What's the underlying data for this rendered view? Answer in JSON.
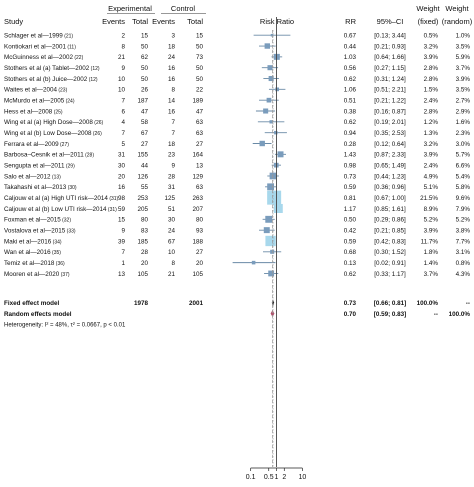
{
  "chart_data": {
    "type": "forest",
    "headers": {
      "study": "Study",
      "experimental": "Experimental",
      "control": "Control",
      "events": "Events",
      "total": "Total",
      "effect": "Risk Ratio",
      "rr": "RR",
      "ci": "95%–CI",
      "weight": "Weight",
      "fixed": "(fixed)",
      "random": "(random)"
    },
    "axis": {
      "scale": "log",
      "xlim": [
        0.05,
        12
      ],
      "ticks": [
        "0.1",
        "0.5",
        "1",
        "2",
        "10"
      ],
      "tick_values": [
        0.1,
        0.5,
        1,
        2,
        10
      ]
    },
    "studies": [
      {
        "study": "Schlager et al—1999",
        "ref": "(21)",
        "e_events": "2",
        "e_total": "15",
        "c_events": "3",
        "c_total": "15",
        "rr": "0.67",
        "ci": "[0.13; 3.44]",
        "w_fixed": "0.5%",
        "w_random": "1.0%",
        "rr_val": 0.67,
        "lo": 0.13,
        "hi": 3.44,
        "wf": 0.5
      },
      {
        "study": "Kontiokari et al—2001",
        "ref": "(11)",
        "e_events": "8",
        "e_total": "50",
        "c_events": "18",
        "c_total": "50",
        "rr": "0.44",
        "ci": "[0.21; 0.93]",
        "w_fixed": "3.2%",
        "w_random": "3.5%",
        "rr_val": 0.44,
        "lo": 0.21,
        "hi": 0.93,
        "wf": 3.2
      },
      {
        "study": "McGuinness et al—2002",
        "ref": "(22)",
        "e_events": "21",
        "e_total": "62",
        "c_events": "24",
        "c_total": "73",
        "rr": "1.03",
        "ci": "[0.64; 1.66]",
        "w_fixed": "3.9%",
        "w_random": "5.9%",
        "rr_val": 1.03,
        "lo": 0.64,
        "hi": 1.66,
        "wf": 3.9
      },
      {
        "study": "Stothers et al (a) Tablet—2002",
        "ref": "(12)",
        "e_events": "9",
        "e_total": "50",
        "c_events": "16",
        "c_total": "50",
        "rr": "0.56",
        "ci": "[0.27; 1.15]",
        "w_fixed": "2.8%",
        "w_random": "3.7%",
        "rr_val": 0.56,
        "lo": 0.27,
        "hi": 1.15,
        "wf": 2.8
      },
      {
        "study": "Stothers et al (b) Juice—2002",
        "ref": "(12)",
        "e_events": "10",
        "e_total": "50",
        "c_events": "16",
        "c_total": "50",
        "rr": "0.62",
        "ci": "[0.31; 1.24]",
        "w_fixed": "2.8%",
        "w_random": "3.9%",
        "rr_val": 0.62,
        "lo": 0.31,
        "hi": 1.24,
        "wf": 2.8
      },
      {
        "study": "Waites et al—2004",
        "ref": "(23)",
        "e_events": "10",
        "e_total": "26",
        "c_events": "8",
        "c_total": "22",
        "rr": "1.06",
        "ci": "[0.51; 2.21]",
        "w_fixed": "1.5%",
        "w_random": "3.5%",
        "rr_val": 1.06,
        "lo": 0.51,
        "hi": 2.21,
        "wf": 1.5
      },
      {
        "study": "McMurdo et al—2005",
        "ref": "(24)",
        "e_events": "7",
        "e_total": "187",
        "c_events": "14",
        "c_total": "189",
        "rr": "0.51",
        "ci": "[0.21; 1.22]",
        "w_fixed": "2.4%",
        "w_random": "2.7%",
        "rr_val": 0.51,
        "lo": 0.21,
        "hi": 1.22,
        "wf": 2.4
      },
      {
        "study": "Hess et al—2008",
        "ref": "(25)",
        "e_events": "6",
        "e_total": "47",
        "c_events": "16",
        "c_total": "47",
        "rr": "0.38",
        "ci": "[0.16; 0.87]",
        "w_fixed": "2.8%",
        "w_random": "2.9%",
        "rr_val": 0.38,
        "lo": 0.16,
        "hi": 0.87,
        "wf": 2.8
      },
      {
        "study": "Wing et al (a) High Dose—2008",
        "ref": "(26)",
        "e_events": "4",
        "e_total": "58",
        "c_events": "7",
        "c_total": "63",
        "rr": "0.62",
        "ci": "[0.19; 2.01]",
        "w_fixed": "1.2%",
        "w_random": "1.6%",
        "rr_val": 0.62,
        "lo": 0.19,
        "hi": 2.01,
        "wf": 1.2
      },
      {
        "study": "Wing et al (b) Low Dose—2008",
        "ref": "(26)",
        "e_events": "7",
        "e_total": "67",
        "c_events": "7",
        "c_total": "63",
        "rr": "0.94",
        "ci": "[0.35; 2.53]",
        "w_fixed": "1.3%",
        "w_random": "2.3%",
        "rr_val": 0.94,
        "lo": 0.35,
        "hi": 2.53,
        "wf": 1.3
      },
      {
        "study": "Ferrara et al—2009",
        "ref": "(27)",
        "e_events": "5",
        "e_total": "27",
        "c_events": "18",
        "c_total": "27",
        "rr": "0.28",
        "ci": "[0.12; 0.64]",
        "w_fixed": "3.2%",
        "w_random": "3.0%",
        "rr_val": 0.28,
        "lo": 0.12,
        "hi": 0.64,
        "wf": 3.2
      },
      {
        "study": "Barbosa–Cesnik et al—2011",
        "ref": "(28)",
        "e_events": "31",
        "e_total": "155",
        "c_events": "23",
        "c_total": "164",
        "rr": "1.43",
        "ci": "[0.87; 2.33]",
        "w_fixed": "3.9%",
        "w_random": "5.7%",
        "rr_val": 1.43,
        "lo": 0.87,
        "hi": 2.33,
        "wf": 3.9
      },
      {
        "study": "Sengupta et al—2011",
        "ref": "(29)",
        "e_events": "30",
        "e_total": "44",
        "c_events": "9",
        "c_total": "13",
        "rr": "0.98",
        "ci": "[0.65; 1.49]",
        "w_fixed": "2.4%",
        "w_random": "6.6%",
        "rr_val": 0.98,
        "lo": 0.65,
        "hi": 1.49,
        "wf": 2.4
      },
      {
        "study": "Salo et al—2012",
        "ref": "(13)",
        "e_events": "20",
        "e_total": "126",
        "c_events": "28",
        "c_total": "129",
        "rr": "0.73",
        "ci": "[0.44; 1.23]",
        "w_fixed": "4.9%",
        "w_random": "5.4%",
        "rr_val": 0.73,
        "lo": 0.44,
        "hi": 1.23,
        "wf": 4.9
      },
      {
        "study": "Takahashi et al—2013",
        "ref": "(30)",
        "e_events": "16",
        "e_total": "55",
        "c_events": "31",
        "c_total": "63",
        "rr": "0.59",
        "ci": "[0.36; 0.96]",
        "w_fixed": "5.1%",
        "w_random": "5.8%",
        "rr_val": 0.59,
        "lo": 0.36,
        "hi": 0.96,
        "wf": 5.1
      },
      {
        "study": "Caljouw et al (a) High UTI risk—2014",
        "ref": "(31)",
        "e_events": "98",
        "e_total": "253",
        "c_events": "125",
        "c_total": "263",
        "rr": "0.81",
        "ci": "[0.67; 1.00]",
        "w_fixed": "21.5%",
        "w_random": "9.6%",
        "rr_val": 0.81,
        "lo": 0.67,
        "hi": 1.0,
        "wf": 21.5
      },
      {
        "study": "Caljouw et al (b) Low UTI risk—2014",
        "ref": "(31)",
        "e_events": "59",
        "e_total": "205",
        "c_events": "51",
        "c_total": "207",
        "rr": "1.17",
        "ci": "[0.85; 1.61]",
        "w_fixed": "8.9%",
        "w_random": "7.9%",
        "rr_val": 1.17,
        "lo": 0.85,
        "hi": 1.61,
        "wf": 8.9
      },
      {
        "study": "Foxman et al—2015",
        "ref": "(32)",
        "e_events": "15",
        "e_total": "80",
        "c_events": "30",
        "c_total": "80",
        "rr": "0.50",
        "ci": "[0.29; 0.86]",
        "w_fixed": "5.2%",
        "w_random": "5.2%",
        "rr_val": 0.5,
        "lo": 0.29,
        "hi": 0.86,
        "wf": 5.2
      },
      {
        "study": "Vostalova et al—2015",
        "ref": "(33)",
        "e_events": "9",
        "e_total": "83",
        "c_events": "24",
        "c_total": "93",
        "rr": "0.42",
        "ci": "[0.21; 0.85]",
        "w_fixed": "3.9%",
        "w_random": "3.8%",
        "rr_val": 0.42,
        "lo": 0.21,
        "hi": 0.85,
        "wf": 3.9
      },
      {
        "study": "Maki et al—2016",
        "ref": "(34)",
        "e_events": "39",
        "e_total": "185",
        "c_events": "67",
        "c_total": "188",
        "rr": "0.59",
        "ci": "[0.42; 0.83]",
        "w_fixed": "11.7%",
        "w_random": "7.7%",
        "rr_val": 0.59,
        "lo": 0.42,
        "hi": 0.83,
        "wf": 11.7
      },
      {
        "study": "Wan et al—2016",
        "ref": "(35)",
        "e_events": "7",
        "e_total": "28",
        "c_events": "10",
        "c_total": "27",
        "rr": "0.68",
        "ci": "[0.30; 1.52]",
        "w_fixed": "1.8%",
        "w_random": "3.1%",
        "rr_val": 0.68,
        "lo": 0.3,
        "hi": 1.52,
        "wf": 1.8
      },
      {
        "study": "Temiz et al—2018",
        "ref": "(36)",
        "e_events": "1",
        "e_total": "20",
        "c_events": "8",
        "c_total": "20",
        "rr": "0.13",
        "ci": "[0.02; 0.91]",
        "w_fixed": "1.4%",
        "w_random": "0.8%",
        "rr_val": 0.13,
        "lo": 0.02,
        "hi": 0.91,
        "wf": 1.4
      },
      {
        "study": "Mooren et al—2020",
        "ref": "(37)",
        "e_events": "13",
        "e_total": "105",
        "c_events": "21",
        "c_total": "105",
        "rr": "0.62",
        "ci": "[0.33; 1.17]",
        "w_fixed": "3.7%",
        "w_random": "4.3%",
        "rr_val": 0.62,
        "lo": 0.33,
        "hi": 1.17,
        "wf": 3.7
      }
    ],
    "fixed": {
      "label": "Fixed effect model",
      "e_total": "1978",
      "c_total": "2001",
      "rr": "0.73",
      "ci": "[0.66; 0.81]",
      "w_fixed": "100.0%",
      "w_random": "--",
      "rr_val": 0.73,
      "lo": 0.66,
      "hi": 0.81
    },
    "random": {
      "label": "Random effects model",
      "rr": "0.70",
      "ci": "[0.59; 0.83]",
      "w_fixed": "--",
      "w_random": "100.0%",
      "rr_val": 0.7,
      "lo": 0.59,
      "hi": 0.83
    },
    "heterogeneity": "Heterogeneity: I² = 48%, τ² = 0.0667, p < 0.01"
  },
  "colors": {
    "ci_line": "#6a8aa6",
    "square": "#7a9cbc",
    "big_square": "#a8d8ec",
    "diamond_fixed": "#2a2a2a",
    "diamond_random": "#b0506a",
    "ref_line": "#444444",
    "dotted_line": "#999999"
  }
}
